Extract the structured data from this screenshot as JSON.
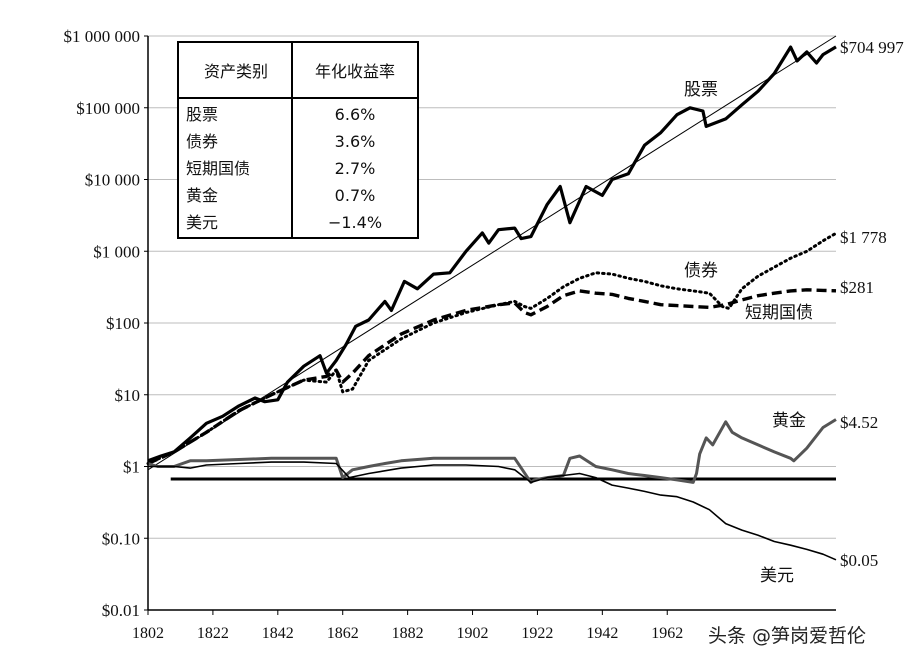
{
  "chart_data": {
    "type": "line",
    "yscale": "log",
    "ylim": [
      0.01,
      1000000
    ],
    "xlim": [
      1802,
      2014
    ],
    "y_ticks": [
      "$1 000 000",
      "$100 000",
      "$10 000",
      "$1 000",
      "$100",
      "$10",
      "$1",
      "$0.10",
      "$0.01"
    ],
    "y_tick_values": [
      1000000,
      100000,
      10000,
      1000,
      100,
      10,
      1,
      0.1,
      0.01
    ],
    "x_ticks": [
      "1802",
      "1822",
      "1842",
      "1862",
      "1882",
      "1902",
      "1922",
      "1942",
      "1962"
    ],
    "x_tick_values": [
      1802,
      1822,
      1842,
      1862,
      1882,
      1902,
      1922,
      1942,
      1962
    ],
    "grid": true,
    "table": {
      "headers": [
        "资产类别",
        "年化收益率"
      ],
      "rows": [
        [
          "股票",
          "6.6%"
        ],
        [
          "债券",
          "3.6%"
        ],
        [
          "短期国债",
          "2.7%"
        ],
        [
          "黄金",
          "0.7%"
        ],
        [
          "美元",
          "−1.4%"
        ]
      ]
    },
    "series": [
      {
        "name": "股票",
        "end_label": "$704 997",
        "color": "#000000",
        "style": "solid-thick",
        "x": [
          1802,
          1806,
          1810,
          1815,
          1820,
          1825,
          1830,
          1835,
          1838,
          1842,
          1845,
          1850,
          1855,
          1857,
          1860,
          1863,
          1866,
          1870,
          1875,
          1877,
          1881,
          1885,
          1890,
          1895,
          1900,
          1905,
          1907,
          1910,
          1915,
          1917,
          1920,
          1925,
          1929,
          1932,
          1937,
          1942,
          1945,
          1950,
          1955,
          1960,
          1965,
          1969,
          1973,
          1974,
          1980,
          1985,
          1990,
          1995,
          2000,
          2002,
          2005,
          2008,
          2010,
          2014
        ],
        "y": [
          1.2,
          1.4,
          1.6,
          2.5,
          4,
          5,
          7,
          9,
          8,
          8.5,
          15,
          25,
          35,
          20,
          30,
          50,
          90,
          110,
          200,
          150,
          380,
          300,
          480,
          500,
          1000,
          1800,
          1300,
          2000,
          2100,
          1500,
          1600,
          4500,
          8000,
          2500,
          8000,
          6000,
          10000,
          12000,
          30000,
          45000,
          80000,
          100000,
          90000,
          55000,
          70000,
          110000,
          170000,
          300000,
          700000,
          450000,
          600000,
          420000,
          550000,
          704997
        ]
      },
      {
        "name": "债券",
        "end_label": "$1 778",
        "color": "#000000",
        "style": "dotted",
        "x": [
          1802,
          1810,
          1820,
          1830,
          1840,
          1850,
          1857,
          1860,
          1862,
          1865,
          1870,
          1880,
          1890,
          1900,
          1910,
          1915,
          1918,
          1920,
          1925,
          1930,
          1935,
          1940,
          1945,
          1950,
          1955,
          1960,
          1965,
          1970,
          1975,
          1979,
          1981,
          1985,
          1990,
          1995,
          2000,
          2005,
          2010,
          2014
        ],
        "y": [
          1.1,
          1.6,
          3,
          6,
          10,
          16,
          15,
          22,
          11,
          12,
          30,
          60,
          100,
          140,
          180,
          200,
          170,
          160,
          220,
          320,
          420,
          500,
          480,
          420,
          380,
          330,
          300,
          280,
          260,
          170,
          160,
          300,
          450,
          600,
          800,
          1000,
          1400,
          1778
        ]
      },
      {
        "name": "短期国债",
        "end_label": "$281",
        "color": "#000000",
        "style": "dashed",
        "x": [
          1802,
          1810,
          1820,
          1830,
          1840,
          1850,
          1857,
          1860,
          1862,
          1865,
          1870,
          1880,
          1890,
          1900,
          1910,
          1915,
          1918,
          1920,
          1925,
          1930,
          1935,
          1940,
          1945,
          1950,
          1955,
          1960,
          1965,
          1970,
          1975,
          1980,
          1985,
          1990,
          1995,
          2000,
          2005,
          2010,
          2014
        ],
        "y": [
          1.1,
          1.6,
          3,
          6,
          10,
          16,
          18,
          22,
          15,
          20,
          35,
          70,
          110,
          150,
          180,
          190,
          140,
          130,
          170,
          240,
          280,
          260,
          250,
          220,
          200,
          180,
          175,
          170,
          165,
          180,
          210,
          240,
          260,
          280,
          290,
          285,
          281
        ]
      },
      {
        "name": "黄金",
        "end_label": "$4.52",
        "color": "#555555",
        "style": "solid-medium",
        "x": [
          1802,
          1805,
          1810,
          1815,
          1820,
          1830,
          1840,
          1850,
          1860,
          1862,
          1865,
          1870,
          1875,
          1880,
          1890,
          1900,
          1910,
          1915,
          1920,
          1921,
          1925,
          1930,
          1932,
          1935,
          1940,
          1945,
          1950,
          1955,
          1960,
          1965,
          1970,
          1971,
          1972,
          1974,
          1976,
          1980,
          1982,
          1985,
          1990,
          1995,
          2000,
          2001,
          2005,
          2010,
          2014
        ],
        "y": [
          1.1,
          1.0,
          1.0,
          1.2,
          1.2,
          1.25,
          1.3,
          1.3,
          1.3,
          0.7,
          0.9,
          1.0,
          1.1,
          1.2,
          1.3,
          1.3,
          1.3,
          1.3,
          0.6,
          0.65,
          0.7,
          0.75,
          1.3,
          1.4,
          1.0,
          0.9,
          0.8,
          0.75,
          0.7,
          0.65,
          0.6,
          0.8,
          1.5,
          2.5,
          2.0,
          4.2,
          3.0,
          2.5,
          2.0,
          1.6,
          1.3,
          1.2,
          1.8,
          3.5,
          4.52
        ]
      },
      {
        "name": "美元",
        "end_label": "$0.05",
        "color": "#000000",
        "style": "solid-thin",
        "x": [
          1802,
          1810,
          1815,
          1820,
          1830,
          1840,
          1850,
          1860,
          1864,
          1870,
          1880,
          1890,
          1900,
          1910,
          1915,
          1920,
          1925,
          1930,
          1935,
          1940,
          1945,
          1950,
          1955,
          1960,
          1965,
          1970,
          1975,
          1980,
          1985,
          1990,
          1995,
          2000,
          2005,
          2010,
          2014
        ],
        "y": [
          1.0,
          1.0,
          0.95,
          1.05,
          1.1,
          1.15,
          1.15,
          1.1,
          0.7,
          0.8,
          0.95,
          1.05,
          1.05,
          1.0,
          0.9,
          0.6,
          0.7,
          0.75,
          0.8,
          0.7,
          0.55,
          0.5,
          0.45,
          0.4,
          0.38,
          0.32,
          0.25,
          0.16,
          0.13,
          0.11,
          0.09,
          0.08,
          0.07,
          0.06,
          0.05
        ]
      }
    ],
    "reference_line": {
      "y": 0.67,
      "x": [
        1809,
        2014
      ]
    },
    "trend_line": {
      "x": [
        1802,
        2014
      ],
      "y": [
        0.9,
        1000000
      ]
    }
  },
  "watermark": "头条 @笋岗爱哲伦",
  "colors": {
    "axis": "#000000",
    "grid": "#bdbdbd",
    "gold": "#555555"
  }
}
